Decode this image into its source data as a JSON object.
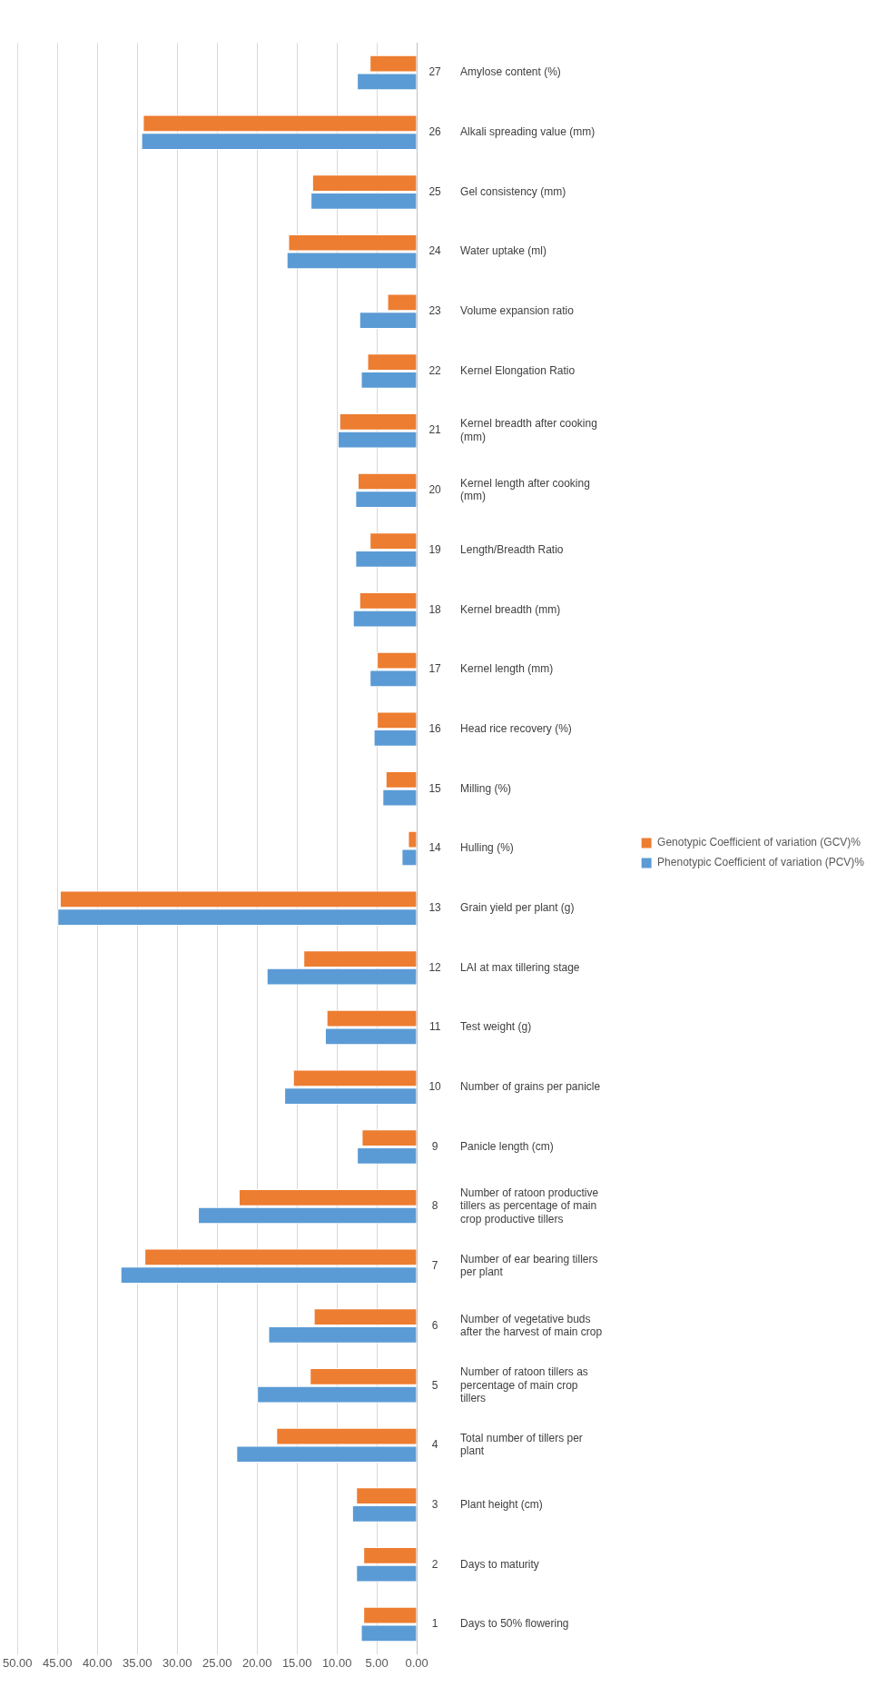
{
  "chart_data": {
    "type": "bar",
    "orientation": "horizontal",
    "categories": [
      "Amylose content (%)",
      "Alkali spreading value (mm)",
      "Gel consistency (mm)",
      "Water uptake (ml)",
      "Volume expansion ratio",
      "Kernel Elongation Ratio",
      "Kernel breadth after cooking (mm)",
      "Kernel length after cooking (mm)",
      "Length/Breadth Ratio",
      "Kernel breadth (mm)",
      "Kernel length (mm)",
      "Head rice recovery (%)",
      "Milling (%)",
      "Hulling (%)",
      "Grain yield per plant (g)",
      "LAI at max tillering stage",
      "Test weight (g)",
      "Number of grains per panicle",
      "Panicle length (cm)",
      "Number of ratoon productive tillers as percentage of main crop productive tillers",
      "Number of ear bearing tillers per plant",
      "Number of vegetative buds after the harvest of main crop",
      "Number of ratoon tillers as percentage of main crop tillers",
      "Total number of tillers per plant",
      "Plant height (cm)",
      "Days to maturity",
      "Days to 50% flowering"
    ],
    "series": [
      {
        "name": "Genotypic Coefficient of variation (GCV)%",
        "color": "#ed7d31",
        "values": [
          5.9,
          34.3,
          13.1,
          16.1,
          3.7,
          6.2,
          9.7,
          7.4,
          5.9,
          7.2,
          5.0,
          5.0,
          3.9,
          1.1,
          44.7,
          14.2,
          11.3,
          15.5,
          6.9,
          22.3,
          34.1,
          12.9,
          13.4,
          17.6,
          7.6,
          6.7,
          6.7
        ]
      },
      {
        "name": "Phenotypic Coefficient of variation (PCV)%",
        "color": "#5b9bd5",
        "values": [
          7.5,
          34.5,
          13.3,
          16.3,
          7.2,
          7.0,
          9.9,
          7.7,
          7.7,
          8.0,
          5.9,
          5.4,
          4.3,
          1.9,
          45.0,
          18.8,
          11.5,
          16.6,
          7.5,
          27.4,
          37.1,
          18.6,
          20.0,
          22.6,
          8.1,
          7.6,
          7.0
        ]
      }
    ],
    "xlim": [
      50,
      0
    ],
    "xticks": [
      {
        "value": 50,
        "label": "50.00"
      },
      {
        "value": 45,
        "label": "45.00"
      },
      {
        "value": 40,
        "label": "40.00"
      },
      {
        "value": 35,
        "label": "35.00"
      },
      {
        "value": 30,
        "label": "30.00"
      },
      {
        "value": 25,
        "label": "25.00"
      },
      {
        "value": 20,
        "label": "20.00"
      },
      {
        "value": 15,
        "label": "15.00"
      },
      {
        "value": 10,
        "label": "10.00"
      },
      {
        "value": 5,
        "label": "5.00"
      },
      {
        "value": 0,
        "label": "0.00"
      }
    ],
    "grid": "x",
    "legend": "right",
    "annotations": [
      "27",
      "26",
      "25",
      "24",
      "23",
      "22",
      "21",
      "20",
      "19",
      "18",
      "17",
      "16",
      "15",
      "14",
      "13",
      "12",
      "11",
      "10",
      "9",
      "8",
      "7",
      "6",
      "5",
      "4",
      "3",
      "2",
      "1"
    ]
  }
}
